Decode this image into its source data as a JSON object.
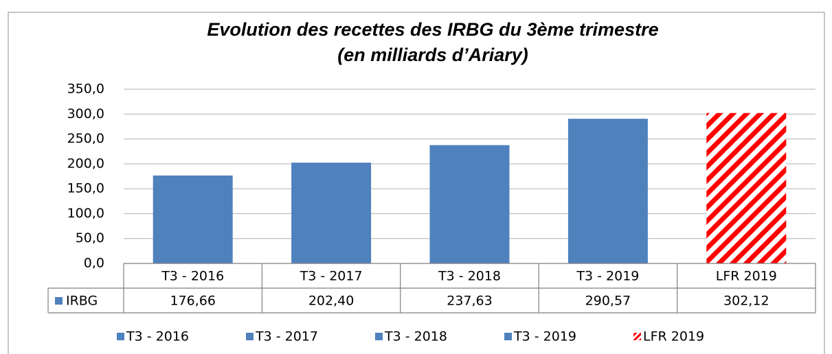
{
  "chart_data": {
    "type": "bar",
    "title": "Evolution des recettes des IRBG du 3ème trimestre",
    "subtitle": "(en milliards d’Ariary)",
    "categories": [
      "T3 - 2016",
      "T3 - 2017",
      "T3 - 2018",
      "T3 - 2019",
      "LFR 2019"
    ],
    "series": [
      {
        "name": "IRBG",
        "values": [
          176.66,
          202.4,
          237.63,
          290.57,
          302.12
        ],
        "value_labels": [
          "176,66",
          "202,40",
          "237,63",
          "290,57",
          "302,12"
        ],
        "colors": [
          "#4f81bd",
          "#4f81bd",
          "#4f81bd",
          "#4f81bd",
          "#ff0000"
        ],
        "hatch": [
          false,
          false,
          false,
          false,
          true
        ]
      }
    ],
    "ylim": [
      0,
      350
    ],
    "yticks": [
      {
        "value": 0,
        "label": "0,0"
      },
      {
        "value": 50,
        "label": "50,0"
      },
      {
        "value": 100,
        "label": "100,0"
      },
      {
        "value": 150,
        "label": "150,0"
      },
      {
        "value": 200,
        "label": "200,0"
      },
      {
        "value": 250,
        "label": "250,0"
      },
      {
        "value": 300,
        "label": "300,0"
      },
      {
        "value": 350,
        "label": "350,0"
      }
    ],
    "grid": true
  }
}
